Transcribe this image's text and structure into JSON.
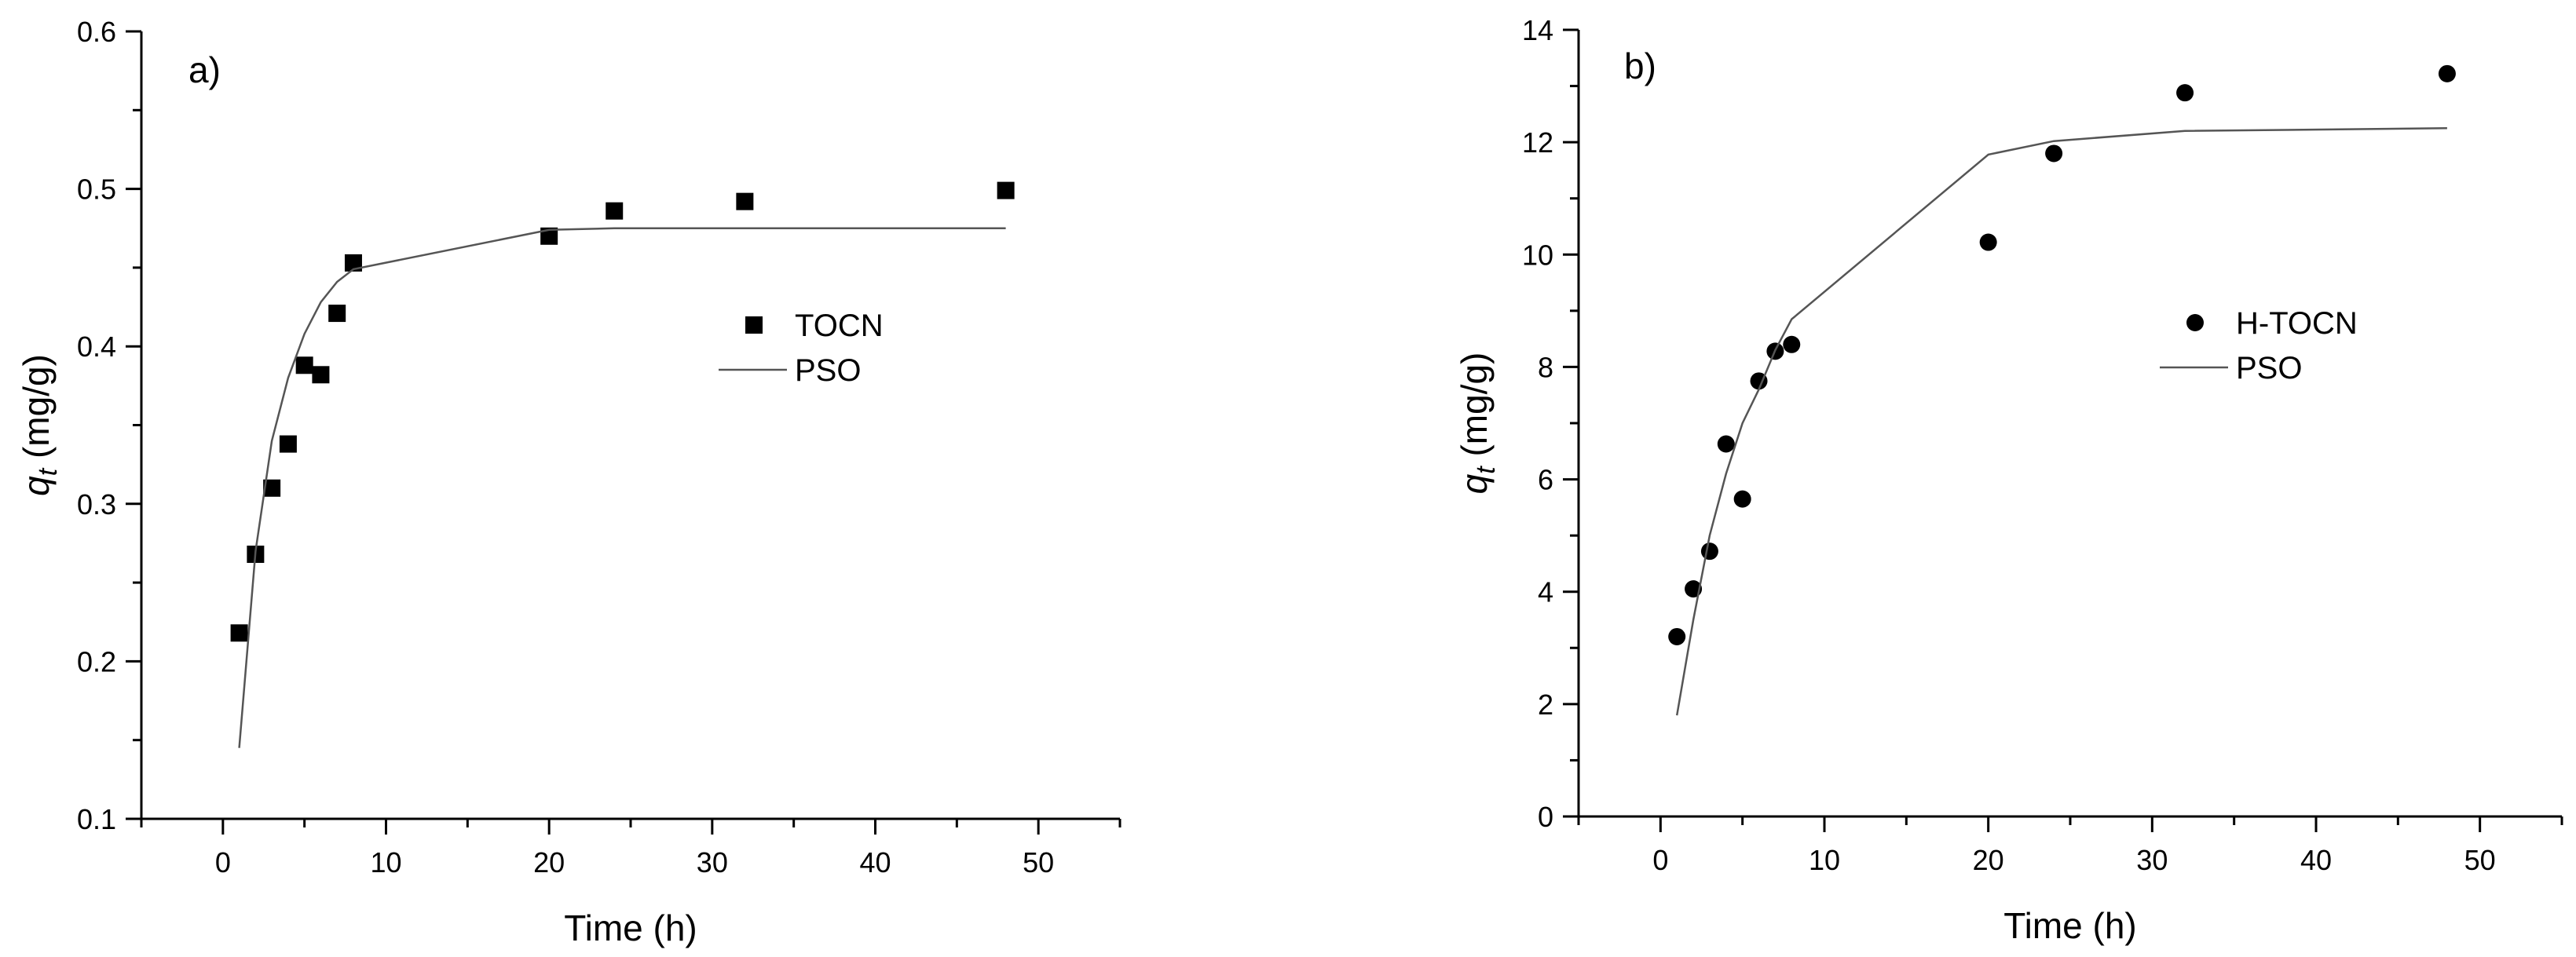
{
  "chart_data": [
    {
      "panel_label": "a)",
      "type": "scatter",
      "xlabel": "Time (h)",
      "ylabel": {
        "main": "q",
        "sub": "t",
        "units": " (mg/g)"
      },
      "xlim": [
        -5,
        55
      ],
      "ylim": [
        0.1,
        0.6
      ],
      "xticks": [
        0,
        10,
        20,
        30,
        40,
        50
      ],
      "yticks": [
        0.1,
        0.2,
        0.3,
        0.4,
        0.5,
        0.6
      ],
      "ytick_decimals": 1,
      "grid": false,
      "legend_position": "middle-right",
      "series": [
        {
          "name": "TOCN",
          "kind": "scatter",
          "marker": "square",
          "color": "#000000",
          "x": [
            1,
            2,
            3,
            4,
            5,
            6,
            7,
            8,
            20,
            24,
            32,
            48
          ],
          "y": [
            0.218,
            0.268,
            0.31,
            0.338,
            0.388,
            0.382,
            0.421,
            0.453,
            0.47,
            0.486,
            0.492,
            0.499
          ]
        },
        {
          "name": "PSO",
          "kind": "line",
          "color": "#555555",
          "x": [
            1,
            2,
            3,
            4,
            5,
            6,
            7,
            8,
            20,
            24,
            32,
            48
          ],
          "y": [
            0.145,
            0.27,
            0.34,
            0.38,
            0.408,
            0.428,
            0.441,
            0.449,
            0.474,
            0.475,
            0.475,
            0.475
          ]
        }
      ]
    },
    {
      "panel_label": "b)",
      "type": "scatter",
      "xlabel": "Time (h)",
      "ylabel": {
        "main": "q",
        "sub": "t",
        "units": " (mg/g)"
      },
      "xlim": [
        -5,
        55
      ],
      "ylim": [
        0,
        14
      ],
      "xticks": [
        0,
        10,
        20,
        30,
        40,
        50
      ],
      "yticks": [
        0,
        2,
        4,
        6,
        8,
        10,
        12,
        14
      ],
      "ytick_decimals": 0,
      "grid": false,
      "legend_position": "middle-right",
      "series": [
        {
          "name": "H-TOCN",
          "kind": "scatter",
          "marker": "circle",
          "color": "#000000",
          "x": [
            1,
            2,
            3,
            4,
            5,
            6,
            7,
            8,
            20,
            24,
            32,
            48
          ],
          "y": [
            3.2,
            4.05,
            4.72,
            6.63,
            5.65,
            7.75,
            8.28,
            8.4,
            10.22,
            11.8,
            12.88,
            13.22
          ]
        },
        {
          "name": "PSO",
          "kind": "line",
          "color": "#555555",
          "x": [
            1,
            2,
            3,
            4,
            5,
            6,
            7,
            8,
            20,
            24,
            32,
            48
          ],
          "y": [
            1.8,
            3.5,
            5.0,
            6.1,
            7.0,
            7.6,
            8.3,
            8.85,
            11.78,
            12.02,
            12.2,
            12.25
          ]
        }
      ]
    }
  ]
}
